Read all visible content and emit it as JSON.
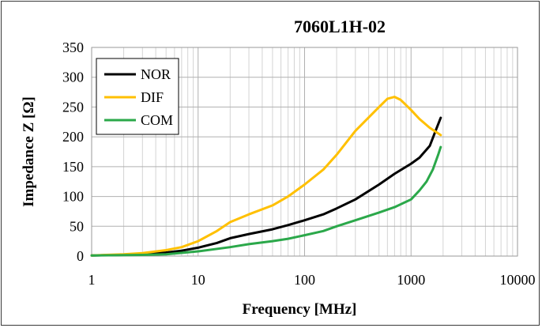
{
  "chart_data": {
    "type": "line",
    "title": "7060L1H-02",
    "xlabel": "Frequency [MHz]",
    "ylabel": "Impedance Z [Ω]",
    "x_scale": "log",
    "xlim": [
      1,
      10000
    ],
    "ylim": [
      0,
      350
    ],
    "x_ticks": [
      1,
      10,
      100,
      1000,
      10000
    ],
    "y_ticks": [
      0,
      50,
      100,
      150,
      200,
      250,
      300,
      350
    ],
    "grid": true,
    "legend_position": "top-left",
    "series": [
      {
        "name": "NOR",
        "color": "#000000",
        "points": [
          [
            1,
            1
          ],
          [
            2,
            2
          ],
          [
            3,
            3
          ],
          [
            5,
            6
          ],
          [
            7,
            9
          ],
          [
            10,
            14
          ],
          [
            15,
            22
          ],
          [
            20,
            30
          ],
          [
            30,
            37
          ],
          [
            50,
            45
          ],
          [
            70,
            52
          ],
          [
            100,
            60
          ],
          [
            150,
            70
          ],
          [
            200,
            80
          ],
          [
            300,
            95
          ],
          [
            500,
            120
          ],
          [
            700,
            138
          ],
          [
            1000,
            155
          ],
          [
            1200,
            165
          ],
          [
            1500,
            185
          ],
          [
            1700,
            210
          ],
          [
            1900,
            232
          ]
        ]
      },
      {
        "name": "DIF",
        "color": "#FFC000",
        "points": [
          [
            1,
            1
          ],
          [
            2,
            3
          ],
          [
            3,
            5
          ],
          [
            5,
            10
          ],
          [
            7,
            15
          ],
          [
            10,
            25
          ],
          [
            15,
            42
          ],
          [
            20,
            57
          ],
          [
            30,
            70
          ],
          [
            50,
            85
          ],
          [
            70,
            100
          ],
          [
            100,
            120
          ],
          [
            150,
            145
          ],
          [
            200,
            170
          ],
          [
            300,
            210
          ],
          [
            500,
            250
          ],
          [
            600,
            264
          ],
          [
            700,
            267
          ],
          [
            800,
            262
          ],
          [
            1000,
            245
          ],
          [
            1200,
            230
          ],
          [
            1500,
            215
          ],
          [
            1900,
            203
          ]
        ]
      },
      {
        "name": "COM",
        "color": "#2BA84A",
        "points": [
          [
            1,
            1
          ],
          [
            3,
            2
          ],
          [
            5,
            3
          ],
          [
            10,
            8
          ],
          [
            20,
            15
          ],
          [
            30,
            20
          ],
          [
            50,
            25
          ],
          [
            70,
            29
          ],
          [
            100,
            35
          ],
          [
            150,
            42
          ],
          [
            200,
            50
          ],
          [
            300,
            60
          ],
          [
            500,
            73
          ],
          [
            700,
            82
          ],
          [
            1000,
            95
          ],
          [
            1200,
            110
          ],
          [
            1400,
            125
          ],
          [
            1600,
            145
          ],
          [
            1800,
            170
          ],
          [
            1900,
            183
          ]
        ]
      }
    ]
  }
}
